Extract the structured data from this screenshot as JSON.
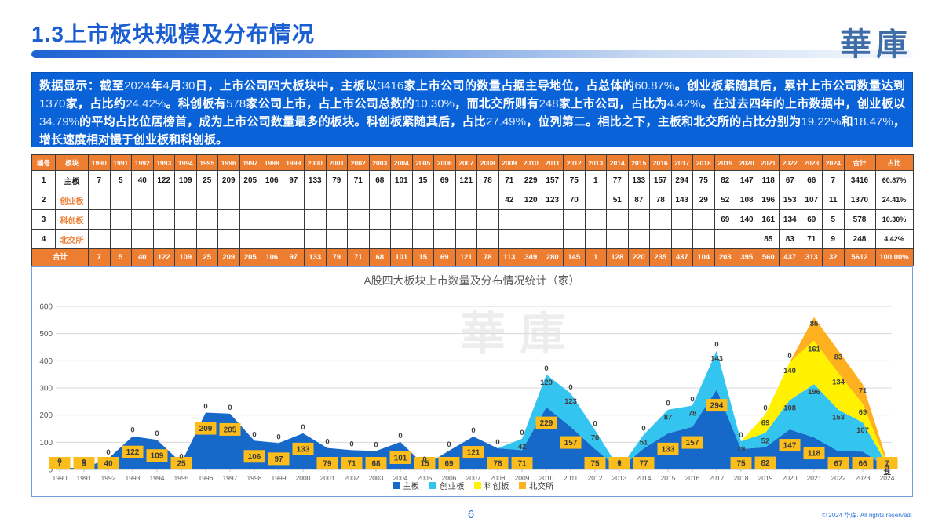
{
  "slide": {
    "title": "1.3上市板块规模及分布情况",
    "logo": "華庫",
    "page_number": "6",
    "copyright": "© 2024 华库. All rights reserved.",
    "watermark": "華庫"
  },
  "summary": {
    "text": "数据显示：截至2024年4月30日，上市公司四大板块中，主板以3416家上市公司的数量占据主导地位，占总体的60.87%。创业板紧随其后，累计上市公司数量达到1370家，占比约24.42%。科创板有578家公司上市，占上市公司总数的10.30%，而北交所则有248家上市公司，占比为4.42%。在过去四年的上市数据中，创业板以34.79%的平均占比位居榜首，成为上市公司数量最多的板块。科创板紧随其后，占比27.49%，位列第二。相比之下，主板和北交所的占比分别为19.22%和18.47%，增长速度相对慢于创业板和科创板。"
  },
  "table": {
    "corner_headers": [
      "编号",
      "板块"
    ],
    "years": [
      "1990",
      "1991",
      "1992",
      "1993",
      "1994",
      "1995",
      "1996",
      "1997",
      "1998",
      "1999",
      "2000",
      "2001",
      "2002",
      "2003",
      "2004",
      "2005",
      "2006",
      "2007",
      "2008",
      "2009",
      "2010",
      "2011",
      "2012",
      "2013",
      "2014",
      "2015",
      "2016",
      "2017",
      "2018",
      "2019",
      "2020",
      "2021",
      "2022",
      "2023",
      "2024"
    ],
    "tail_headers": [
      "合计",
      "占比"
    ],
    "rows": [
      {
        "no": "1",
        "name": "主板",
        "name_orange": false,
        "values": [
          "7",
          "5",
          "40",
          "122",
          "109",
          "25",
          "209",
          "205",
          "106",
          "97",
          "133",
          "79",
          "71",
          "68",
          "101",
          "15",
          "69",
          "121",
          "78",
          "71",
          "229",
          "157",
          "75",
          "1",
          "77",
          "133",
          "157",
          "294",
          "75",
          "82",
          "147",
          "118",
          "67",
          "66",
          "7"
        ],
        "total": "3416",
        "pct": "60.87%"
      },
      {
        "no": "2",
        "name": "创业板",
        "name_orange": true,
        "values": [
          "",
          "",
          "",
          "",
          "",
          "",
          "",
          "",
          "",
          "",
          "",
          "",
          "",
          "",
          "",
          "",
          "",
          "",
          "",
          "42",
          "120",
          "123",
          "70",
          "",
          "51",
          "87",
          "78",
          "143",
          "29",
          "52",
          "108",
          "196",
          "153",
          "107",
          "11"
        ],
        "total": "1370",
        "pct": "24.41%"
      },
      {
        "no": "3",
        "name": "科创板",
        "name_orange": true,
        "values": [
          "",
          "",
          "",
          "",
          "",
          "",
          "",
          "",
          "",
          "",
          "",
          "",
          "",
          "",
          "",
          "",
          "",
          "",
          "",
          "",
          "",
          "",
          "",
          "",
          "",
          "",
          "",
          "",
          "",
          "69",
          "140",
          "161",
          "134",
          "69",
          "5"
        ],
        "total": "578",
        "pct": "10.30%"
      },
      {
        "no": "4",
        "name": "北交所",
        "name_orange": true,
        "values": [
          "",
          "",
          "",
          "",
          "",
          "",
          "",
          "",
          "",
          "",
          "",
          "",
          "",
          "",
          "",
          "",
          "",
          "",
          "",
          "",
          "",
          "",
          "",
          "",
          "",
          "",
          "",
          "",
          "",
          "",
          "",
          "85",
          "83",
          "71",
          "9"
        ],
        "total": "248",
        "pct": "4.42%"
      }
    ],
    "footer": {
      "label": "合计",
      "values": [
        "7",
        "5",
        "40",
        "122",
        "109",
        "25",
        "209",
        "205",
        "106",
        "97",
        "133",
        "79",
        "71",
        "68",
        "101",
        "15",
        "69",
        "121",
        "78",
        "113",
        "349",
        "280",
        "145",
        "1",
        "128",
        "220",
        "235",
        "437",
        "104",
        "203",
        "395",
        "560",
        "437",
        "313",
        "32"
      ],
      "total": "5612",
      "pct": "100.00%"
    }
  },
  "chart_data": {
    "type": "area",
    "stacked": true,
    "title": "A股四大板块上市数量及分布情况统计（家）",
    "x": [
      1990,
      1991,
      1992,
      1993,
      1994,
      1995,
      1996,
      1997,
      1998,
      1999,
      2000,
      2001,
      2002,
      2003,
      2004,
      2005,
      2006,
      2007,
      2008,
      2009,
      2010,
      2011,
      2012,
      2013,
      2014,
      2015,
      2016,
      2017,
      2018,
      2019,
      2020,
      2021,
      2022,
      2023,
      2024
    ],
    "series": [
      {
        "name": "主板",
        "color": "#1668C9",
        "values": [
          7,
          5,
          40,
          122,
          109,
          25,
          209,
          205,
          106,
          97,
          133,
          79,
          71,
          68,
          101,
          15,
          69,
          121,
          78,
          71,
          229,
          157,
          75,
          1,
          77,
          133,
          157,
          294,
          75,
          82,
          147,
          118,
          67,
          66,
          7
        ]
      },
      {
        "name": "创业板",
        "color": "#33C4F0",
        "values": [
          null,
          null,
          null,
          null,
          null,
          null,
          null,
          null,
          null,
          null,
          null,
          null,
          null,
          null,
          null,
          null,
          null,
          null,
          null,
          42,
          120,
          123,
          70,
          null,
          51,
          87,
          78,
          143,
          29,
          52,
          108,
          196,
          153,
          107,
          11
        ]
      },
      {
        "name": "科创板",
        "color": "#FFF100",
        "values": [
          null,
          null,
          null,
          null,
          null,
          null,
          null,
          null,
          null,
          null,
          null,
          null,
          null,
          null,
          null,
          null,
          null,
          null,
          null,
          null,
          null,
          null,
          null,
          null,
          null,
          null,
          null,
          null,
          null,
          69,
          140,
          161,
          134,
          69,
          5
        ]
      },
      {
        "name": "北交所",
        "color": "#FFB01E",
        "values": [
          null,
          null,
          null,
          null,
          null,
          null,
          null,
          null,
          null,
          null,
          null,
          null,
          null,
          null,
          null,
          null,
          null,
          null,
          null,
          null,
          null,
          null,
          null,
          null,
          null,
          null,
          null,
          null,
          null,
          null,
          null,
          85,
          83,
          71,
          9
        ]
      }
    ],
    "ylim": [
      0,
      600
    ],
    "yticks": [
      0,
      100,
      200,
      300,
      400,
      500,
      600
    ],
    "grid": true,
    "legend_position": "bottom",
    "label_box_color": "#FBBD1B",
    "label_text_color": "#3A3A3A",
    "zero_label_through_year": 2020
  }
}
